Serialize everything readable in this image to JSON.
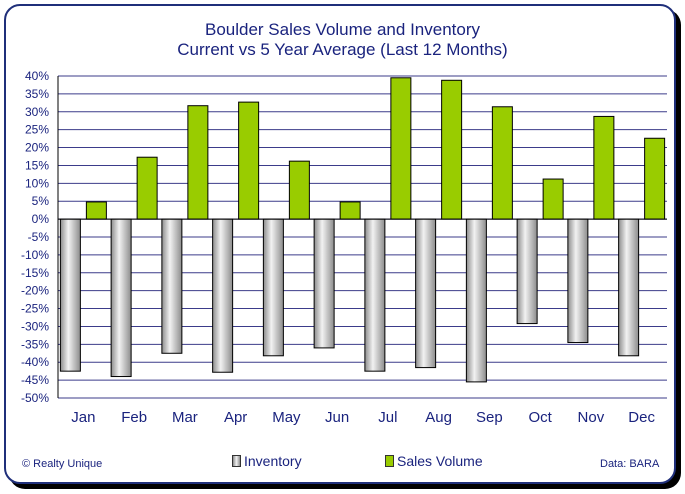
{
  "colors": {
    "sales": "#99cc00",
    "inventory_light": "#f2f2f2",
    "inventory_dark": "#8c8c8c",
    "text": "#1a237e",
    "grid": "#3b3b8a"
  },
  "footer": {
    "credit": "© Realty Unique",
    "source": "Data: BARA"
  },
  "chart_data": {
    "type": "bar",
    "title_lines": [
      "Boulder Sales Volume and Inventory",
      "Current vs 5 Year Average (Last 12 Months)"
    ],
    "categories": [
      "Jan",
      "Feb",
      "Mar",
      "Apr",
      "May",
      "Jun",
      "Jul",
      "Aug",
      "Sep",
      "Oct",
      "Nov",
      "Dec"
    ],
    "series": [
      {
        "name": "Inventory",
        "values": [
          -42.5,
          -44,
          -37.5,
          -42.8,
          -38.2,
          -36,
          -42.5,
          -41.5,
          -45.5,
          -29.2,
          -34.5,
          -38.2
        ]
      },
      {
        "name": "Sales Volume",
        "values": [
          4.8,
          17.3,
          31.7,
          32.7,
          16.2,
          4.8,
          39.5,
          38.8,
          31.4,
          11.2,
          28.7,
          22.6
        ]
      }
    ],
    "ylim": [
      -50,
      40
    ],
    "yticks": [
      40,
      35,
      30,
      25,
      20,
      15,
      10,
      5,
      0,
      -5,
      -10,
      -15,
      -20,
      -25,
      -30,
      -35,
      -40,
      -45,
      -50
    ],
    "ytick_labels": [
      "40%",
      "35%",
      "30%",
      "25%",
      "20%",
      "15%",
      "10%",
      "5%",
      "0%",
      "-5%",
      "-10%",
      "-15%",
      "-20%",
      "-25%",
      "-30%",
      "-35%",
      "-40%",
      "-45%",
      "-50%"
    ],
    "grid": true,
    "legend_position": "bottom"
  }
}
